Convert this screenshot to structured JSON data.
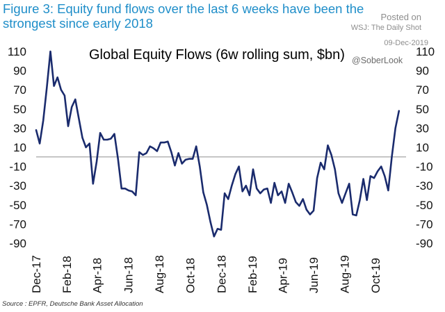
{
  "header": {
    "figure_title": "Figure 3: Equity fund flows over the last 6 weeks have been the strongest since early 2018",
    "posted_on": "Posted on",
    "site": "WSJ: The Daily Shot",
    "date": "09-Dec-2019",
    "handle": "@SoberLook"
  },
  "footer": {
    "source": "Source : EPFR, Deutsche Bank Asset Allocation"
  },
  "colors": {
    "line": "#1a2b6d",
    "title": "#1f8ec9",
    "zero_line": "#9a9a9a"
  },
  "chart_data": {
    "type": "line",
    "title": "Global Equity Flows (6w rolling sum, $bn)",
    "xlabel": "",
    "ylabel": "",
    "ylim": [
      -90,
      110
    ],
    "yticks": [
      110,
      90,
      70,
      50,
      30,
      10,
      -10,
      -30,
      -50,
      -70,
      -90
    ],
    "xlim": [
      0,
      104
    ],
    "xticks": [
      {
        "label": "Dec-17",
        "x": 0
      },
      {
        "label": "Feb-18",
        "x": 8.6
      },
      {
        "label": "Apr-18",
        "x": 17.1
      },
      {
        "label": "Jun-18",
        "x": 25.9
      },
      {
        "label": "Aug-18",
        "x": 34.6
      },
      {
        "label": "Oct-18",
        "x": 43.3
      },
      {
        "label": "Dec-18",
        "x": 52.1
      },
      {
        "label": "Feb-19",
        "x": 60.8
      },
      {
        "label": "Apr-19",
        "x": 69.3
      },
      {
        "label": "Jun-19",
        "x": 78.0
      },
      {
        "label": "Aug-19",
        "x": 86.7
      },
      {
        "label": "Oct-19",
        "x": 95.4
      }
    ],
    "zero_line": true,
    "series": [
      {
        "name": "Global Equity Flows (6w rolling sum, $bn)",
        "x": [
          0,
          1,
          2,
          3,
          4,
          5,
          6,
          7,
          8,
          9,
          10,
          11,
          12,
          13,
          14,
          15,
          16,
          17,
          18,
          19,
          20,
          21,
          22,
          23,
          24,
          25,
          26,
          27,
          28,
          29,
          30,
          31,
          32,
          33,
          34,
          35,
          36,
          37,
          38,
          39,
          40,
          41,
          42,
          43,
          44,
          45,
          46,
          47,
          48,
          49,
          50,
          51,
          52,
          53,
          54,
          55,
          56,
          57,
          58,
          59,
          60,
          61,
          62,
          63,
          64,
          65,
          66,
          67,
          68,
          69,
          70,
          71,
          72,
          73,
          74,
          75,
          76,
          77,
          78,
          79,
          80,
          81,
          82,
          83,
          84,
          85,
          86,
          87,
          88,
          89,
          90,
          91,
          92,
          93,
          94,
          95,
          96,
          97,
          98,
          99,
          100,
          101,
          102
        ],
        "values": [
          28,
          14,
          38,
          72,
          110,
          74,
          83,
          70,
          64,
          32,
          52,
          60,
          40,
          20,
          10,
          14,
          -28,
          -5,
          25,
          18,
          18,
          19,
          24,
          -2,
          -33,
          -33,
          -35,
          -36,
          -40,
          5,
          2,
          4,
          11,
          9,
          6,
          15,
          15,
          16,
          5,
          -9,
          4,
          -7,
          -3,
          -2,
          -2,
          11,
          -10,
          -37,
          -50,
          -68,
          -83,
          -75,
          -76,
          -38,
          -44,
          -30,
          -18,
          -10,
          -36,
          -30,
          -40,
          -13,
          -33,
          -38,
          -34,
          -33,
          -48,
          -27,
          -40,
          -36,
          -48,
          -28,
          -37,
          -47,
          -51,
          -44,
          -55,
          -60,
          -56,
          -22,
          -6,
          -13,
          12,
          2,
          -13,
          -38,
          -48,
          -38,
          -28,
          -60,
          -61,
          -45,
          -23,
          -45,
          -20,
          -22,
          -15,
          -10,
          -20,
          -35,
          0,
          30,
          48
        ]
      }
    ]
  }
}
